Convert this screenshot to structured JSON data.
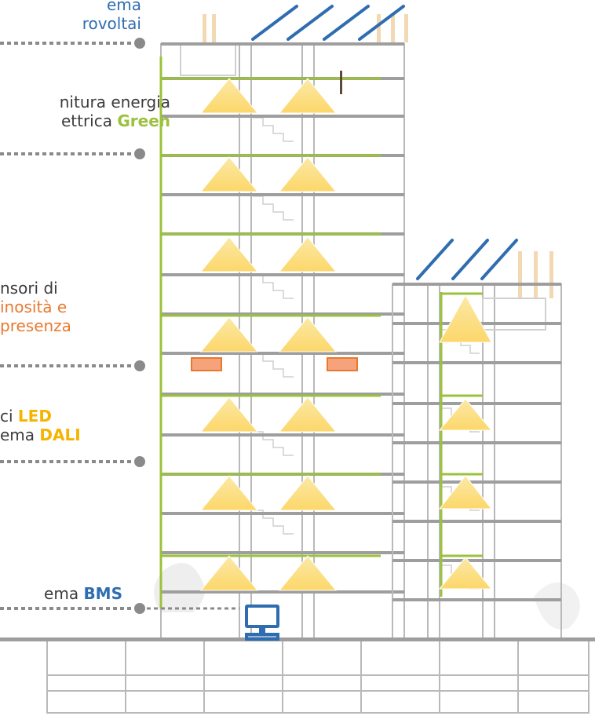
{
  "labels": {
    "pv": {
      "line1": "ema",
      "line2": "rovoltai"
    },
    "green": {
      "line1": "nitura energia",
      "line2_prefix": "ettrica ",
      "line2_strong": "Green"
    },
    "sensors": {
      "line1": "nsori di",
      "line2": "inosità e",
      "line3": "presenza"
    },
    "led": {
      "line1_prefix": "ci ",
      "line1_strong": "LED",
      "line2_prefix": "ema ",
      "line2_strong": "DALI"
    },
    "bms": {
      "prefix": "ema ",
      "strong": "BMS"
    }
  },
  "colors": {
    "structure": "#b9b9b9",
    "floor_slab": "#9e9e9e",
    "green_line": "#9bc23c",
    "solar_panel": "#2f6db0",
    "sensor": "#f08c5a",
    "sensor_text": "#e8792f",
    "pv_text": "#2f6db0",
    "led_light": "#fcd76a",
    "led_text": "#f4b400",
    "bms_text": "#2f6db0",
    "callout": "#8a8a8a",
    "label_text": "#3c3c3c",
    "wood": "#f2d9b3"
  }
}
